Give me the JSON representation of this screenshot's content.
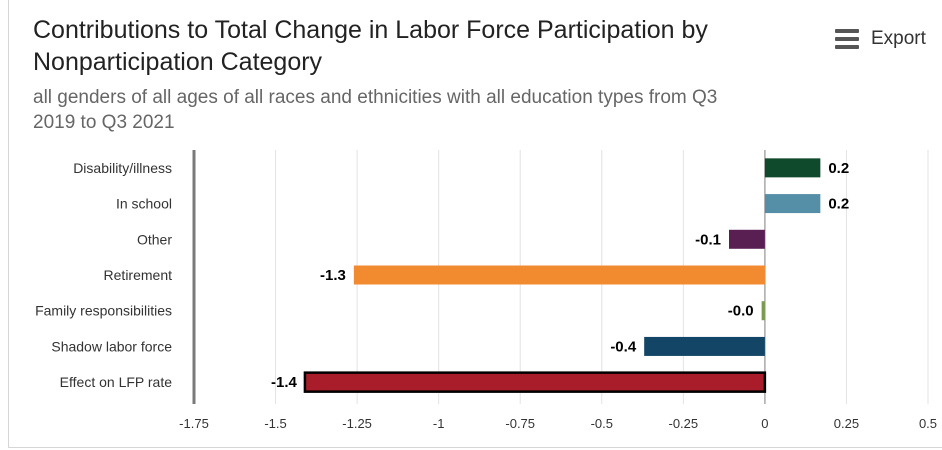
{
  "title": "Contributions to Total Change in Labor Force Participation by Nonparticipation Category",
  "subtitle": "all genders of all ages of all races and ethnicities with all education types from Q3 2019 to Q3 2021",
  "export": {
    "label": "Export",
    "icon": "menu-icon"
  },
  "chart_data": {
    "type": "bar",
    "orientation": "horizontal",
    "categories": [
      "Disability/illness",
      "In school",
      "Other",
      "Retirement",
      "Family responsibilities",
      "Shadow labor force",
      "Effect on LFP rate"
    ],
    "values": [
      0.17,
      0.17,
      -0.11,
      -1.26,
      -0.01,
      -0.37,
      -1.41
    ],
    "data_labels": [
      "0.2",
      "0.2",
      "-0.1",
      "-1.3",
      "-0.0",
      "-0.4",
      "-1.4"
    ],
    "colors": [
      "#0f4a2c",
      "#558ea7",
      "#5a1f52",
      "#f28a30",
      "#7c9a4e",
      "#124566",
      "#a81d29"
    ],
    "highlight": [
      false,
      false,
      false,
      false,
      false,
      false,
      true
    ],
    "xlim": [
      -1.75,
      0.5
    ],
    "xticks": [
      -1.75,
      -1.5,
      -1.25,
      -1,
      -0.75,
      -0.5,
      -0.25,
      0,
      0.25,
      0.5
    ],
    "xtick_labels": [
      "-1.75",
      "-1.5",
      "-1.25",
      "-1",
      "-0.75",
      "-0.5",
      "-0.25",
      "0",
      "0.25",
      "0.5"
    ],
    "grid": "vertical",
    "xlabel": "",
    "ylabel": ""
  }
}
